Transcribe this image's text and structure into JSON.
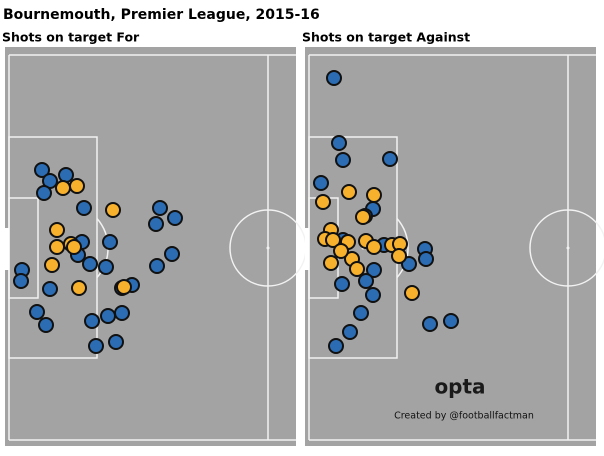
{
  "title": "Bournemouth, Premier League, 2015-16",
  "chart_data": [
    {
      "type": "scatter",
      "title": "Shots on target For",
      "xlim": [
        0,
        57
      ],
      "ylim": [
        0,
        77
      ],
      "series": [
        {
          "color": "#2b6cb3",
          "x": [
            6.6,
            8.2,
            11.4,
            7,
            15,
            30.2,
            33.2,
            29.4,
            20.2,
            14.6,
            13.8,
            32.6,
            16.2,
            19.4,
            2.6,
            2.4,
            8.2,
            29.6,
            24.6,
            22.6,
            5.6,
            7.4,
            19.8,
            22.6,
            16.6,
            17.4,
            21.4
          ],
          "values": [
            23,
            25.2,
            24,
            27.6,
            30.6,
            30.6,
            32.6,
            33.8,
            37.4,
            37.4,
            40,
            39.8,
            41.8,
            42.4,
            43,
            45.2,
            46.8,
            42.2,
            46,
            46.6,
            51.4,
            54,
            52.2,
            51.6,
            53.2,
            58.2,
            57.4
          ]
        },
        {
          "color": "#f8b12c",
          "x": [
            10.8,
            13.6,
            20.8,
            9.6,
            9.6,
            12.4,
            13,
            8.6,
            14,
            23
          ],
          "values": [
            26.6,
            26.2,
            31,
            35,
            38.4,
            37.8,
            38.4,
            42,
            46.6,
            46.4
          ]
        }
      ]
    },
    {
      "type": "scatter",
      "title": "Shots on target Against",
      "xlim": [
        0,
        57
      ],
      "ylim": [
        0,
        77
      ],
      "logo": "opta",
      "credit": "Created by @footballfactman",
      "series": [
        {
          "color": "#2b6cb3",
          "x": [
            5,
            6,
            6.8,
            16.2,
            2.4,
            12.8,
            11.2,
            7.6,
            15,
            6.8,
            20,
            23.2,
            23.4,
            13,
            6.6,
            11.4,
            12.8,
            10.4,
            8.2,
            5.4,
            24.2,
            28.4
          ],
          "values": [
            4.6,
            17.6,
            21,
            20.8,
            25.6,
            30.8,
            32.2,
            37.4,
            38,
            37,
            41.8,
            38.8,
            40.8,
            43,
            45.8,
            45.2,
            48,
            51.6,
            55.4,
            58.2,
            53.8,
            53.2
          ]
        },
        {
          "color": "#f8b12c",
          "x": [
            8,
            2.8,
            13,
            10.8,
            4.4,
            3.2,
            4.8,
            7.8,
            11.4,
            13,
            16.6,
            18.2,
            18,
            8.6,
            4.4,
            9.6,
            20.6,
            6.4
          ],
          "values": [
            27.4,
            29.4,
            28,
            32.4,
            35,
            36.8,
            37,
            37.4,
            37.2,
            38.4,
            38,
            37.8,
            40.2,
            40.8,
            41.6,
            42.8,
            47.6,
            39.2
          ]
        }
      ]
    }
  ]
}
